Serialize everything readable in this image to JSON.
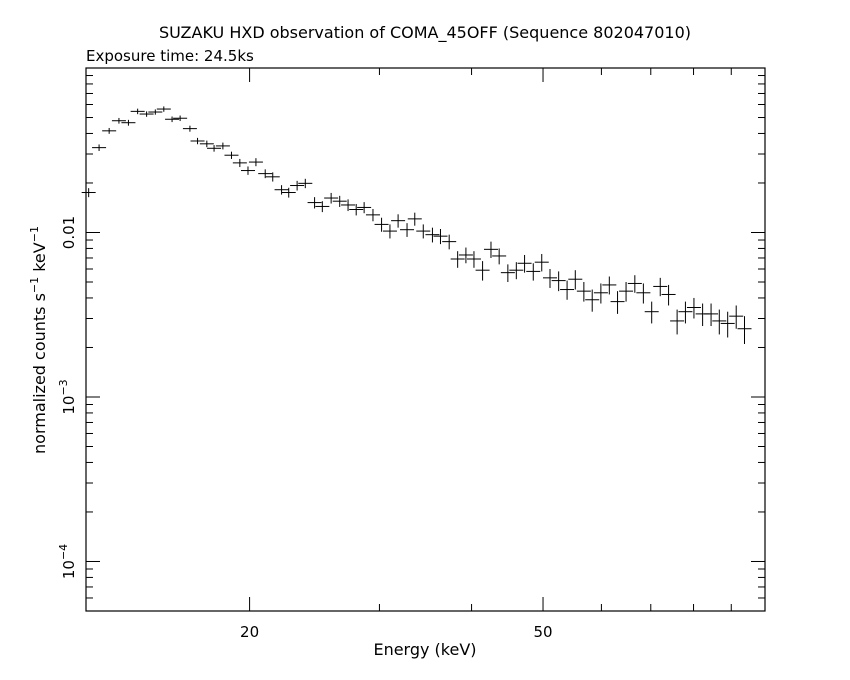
{
  "chart_data": {
    "type": "scatter",
    "title": "SUZAKU HXD observation of COMA_45OFF (Sequence 802047010)",
    "subtitle": "Exposure time: 24.5ks",
    "xlabel": "Energy (keV)",
    "ylabel": {
      "base": "normalized counts s",
      "exp1": "−1",
      "mid": " keV",
      "exp2": "−1"
    },
    "x_scale": "log",
    "y_scale": "log",
    "xlim": [
      12,
      100
    ],
    "ylim": [
      5e-05,
      0.1
    ],
    "x_ticks": [
      {
        "value": 20,
        "label": "20"
      },
      {
        "value": 50,
        "label": "50"
      }
    ],
    "y_ticks": [
      {
        "value": 0.01,
        "label": "0.01",
        "kind": "plain"
      },
      {
        "value": 0.001,
        "mant": "10",
        "exp": "−3",
        "kind": "power"
      },
      {
        "value": 0.0001,
        "mant": "10",
        "exp": "−4",
        "kind": "power"
      }
    ],
    "grid": false,
    "series": [
      {
        "color": "#000000",
        "points": [
          [
            12.1,
            0.0175,
            0.0011
          ],
          [
            12.5,
            0.0328,
            0.0015
          ],
          [
            12.9,
            0.0415,
            0.0017
          ],
          [
            13.3,
            0.0478,
            0.0019
          ],
          [
            13.7,
            0.0465,
            0.0019
          ],
          [
            14.1,
            0.0545,
            0.0021
          ],
          [
            14.5,
            0.0525,
            0.002
          ],
          [
            14.9,
            0.054,
            0.002
          ],
          [
            15.3,
            0.0563,
            0.0021
          ],
          [
            15.7,
            0.0488,
            0.0019
          ],
          [
            16.1,
            0.0495,
            0.0019
          ],
          [
            16.6,
            0.0428,
            0.0018
          ],
          [
            17.0,
            0.036,
            0.0016
          ],
          [
            17.5,
            0.0346,
            0.0016
          ],
          [
            17.9,
            0.0325,
            0.0015
          ],
          [
            18.4,
            0.0336,
            0.0016
          ],
          [
            18.9,
            0.0295,
            0.0015
          ],
          [
            19.4,
            0.0265,
            0.0015
          ],
          [
            19.9,
            0.0238,
            0.0014
          ],
          [
            20.4,
            0.0268,
            0.0015
          ],
          [
            21.0,
            0.0228,
            0.0014
          ],
          [
            21.5,
            0.0218,
            0.0014
          ],
          [
            22.1,
            0.0182,
            0.0012
          ],
          [
            22.6,
            0.0175,
            0.0012
          ],
          [
            23.2,
            0.0193,
            0.0013
          ],
          [
            23.8,
            0.0199,
            0.0013
          ],
          [
            24.5,
            0.0152,
            0.0012
          ],
          [
            25.1,
            0.0144,
            0.0011
          ],
          [
            25.8,
            0.0162,
            0.0012
          ],
          [
            26.5,
            0.0155,
            0.0012
          ],
          [
            27.2,
            0.0147,
            0.0012
          ],
          [
            27.9,
            0.0138,
            0.0011
          ],
          [
            28.6,
            0.0142,
            0.0011
          ],
          [
            29.4,
            0.0128,
            0.0011
          ],
          [
            30.2,
            0.0112,
            0.0011
          ],
          [
            31.0,
            0.0102,
            0.001
          ],
          [
            31.8,
            0.0118,
            0.0011
          ],
          [
            32.7,
            0.0104,
            0.001
          ],
          [
            33.5,
            0.0121,
            0.0011
          ],
          [
            34.4,
            0.0102,
            0.001
          ],
          [
            35.4,
            0.0097,
            0.001
          ],
          [
            36.3,
            0.0095,
            0.001
          ],
          [
            37.3,
            0.0088,
            0.0009
          ],
          [
            38.3,
            0.0069,
            0.0008
          ],
          [
            39.3,
            0.0073,
            0.0008
          ],
          [
            40.3,
            0.0069,
            0.0008
          ],
          [
            41.4,
            0.0059,
            0.0008
          ],
          [
            42.5,
            0.0079,
            0.0009
          ],
          [
            43.6,
            0.0072,
            0.0008
          ],
          [
            44.8,
            0.0057,
            0.0007
          ],
          [
            46.0,
            0.0059,
            0.0007
          ],
          [
            47.2,
            0.0065,
            0.0008
          ],
          [
            48.5,
            0.0058,
            0.0007
          ],
          [
            49.8,
            0.0066,
            0.0008
          ],
          [
            51.1,
            0.0053,
            0.0007
          ],
          [
            52.5,
            0.0051,
            0.0007
          ],
          [
            53.9,
            0.0045,
            0.0006
          ],
          [
            55.3,
            0.0052,
            0.0007
          ],
          [
            56.8,
            0.0044,
            0.0006
          ],
          [
            58.3,
            0.0039,
            0.0006
          ],
          [
            59.9,
            0.0043,
            0.0006
          ],
          [
            61.5,
            0.0048,
            0.0006
          ],
          [
            63.1,
            0.0038,
            0.0006
          ],
          [
            64.8,
            0.0044,
            0.0006
          ],
          [
            66.6,
            0.0049,
            0.0006
          ],
          [
            68.4,
            0.0043,
            0.0006
          ],
          [
            70.2,
            0.0033,
            0.0005
          ],
          [
            72.1,
            0.0047,
            0.0006
          ],
          [
            74.0,
            0.0042,
            0.0006
          ],
          [
            76.0,
            0.0029,
            0.0005
          ],
          [
            78.0,
            0.0033,
            0.0005
          ],
          [
            80.1,
            0.0035,
            0.0005
          ],
          [
            82.3,
            0.0032,
            0.0005
          ],
          [
            84.5,
            0.0032,
            0.0005
          ],
          [
            86.7,
            0.0029,
            0.0005
          ],
          [
            89.0,
            0.0028,
            0.0005
          ],
          [
            91.4,
            0.0031,
            0.0005
          ],
          [
            93.8,
            0.0026,
            0.0005
          ]
        ]
      }
    ],
    "marker": "cross with error bars"
  }
}
